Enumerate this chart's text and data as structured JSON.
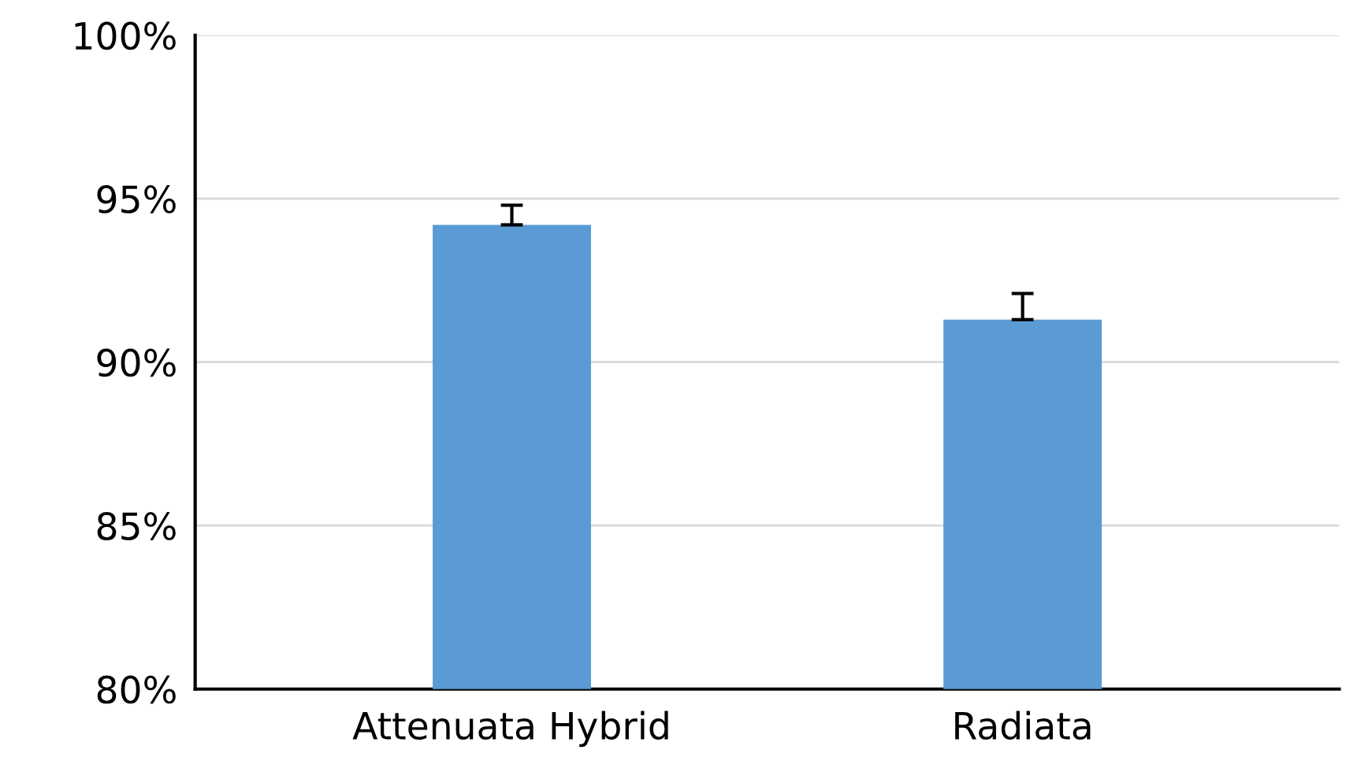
{
  "chart_data": {
    "type": "bar",
    "categories": [
      "Attenuata Hybrid",
      "Radiata"
    ],
    "values": [
      94.2,
      91.3
    ],
    "errors": [
      [
        94.2,
        94.8
      ],
      [
        91.3,
        92.1
      ]
    ],
    "color": "#5b9bd5",
    "ylim": [
      80,
      100
    ],
    "yticks": [
      {
        "value": 80,
        "label": "80%"
      },
      {
        "value": 85,
        "label": "85%"
      },
      {
        "value": 90,
        "label": "90%"
      },
      {
        "value": 95,
        "label": "95%"
      },
      {
        "value": 100,
        "label": "100%"
      }
    ],
    "grid": "y"
  }
}
